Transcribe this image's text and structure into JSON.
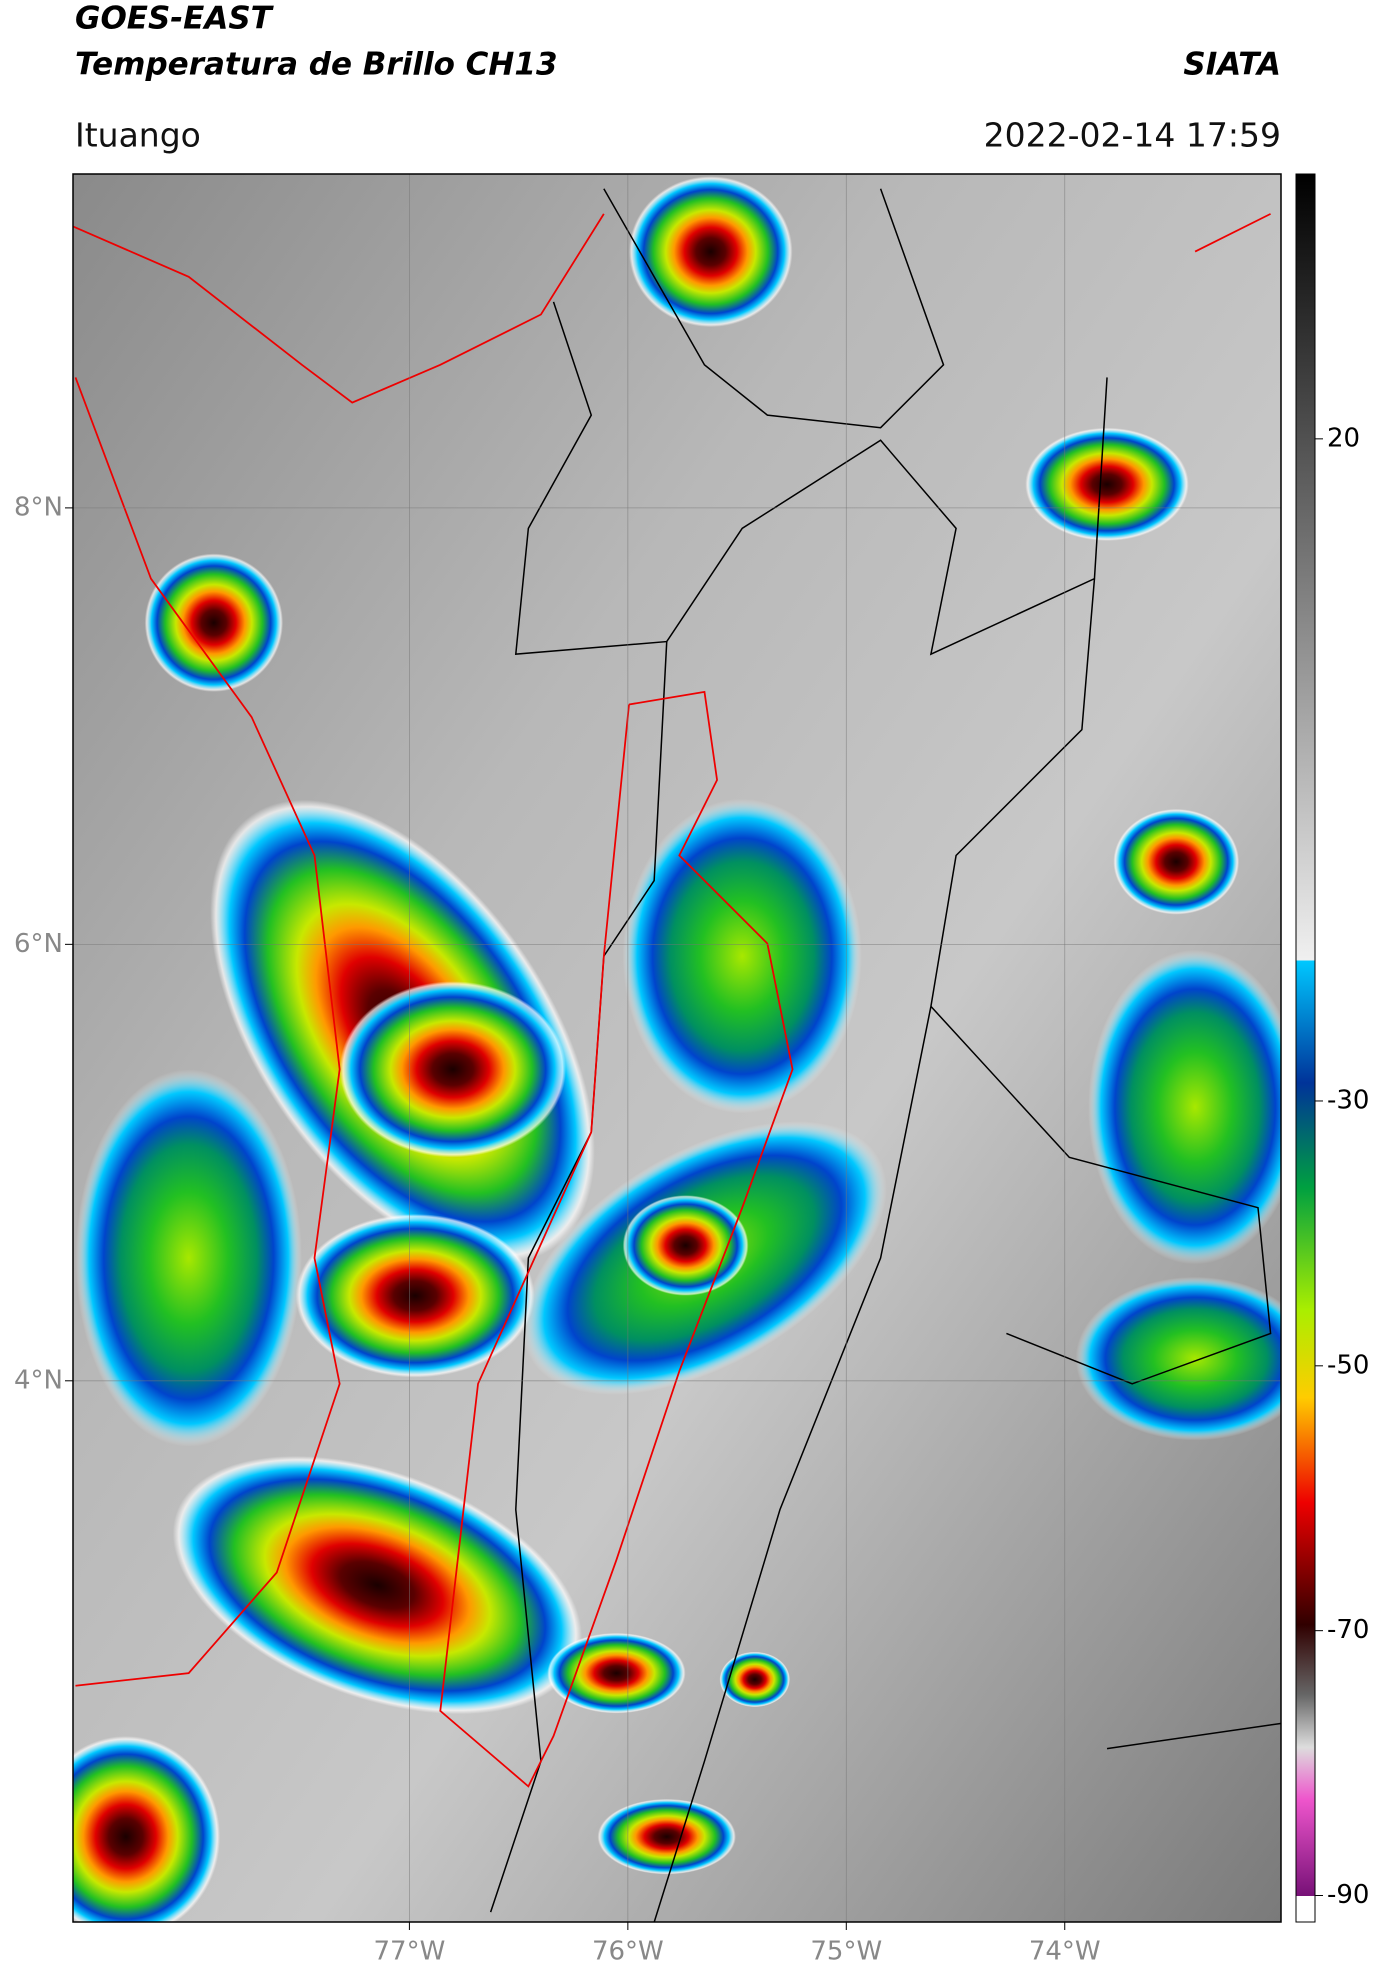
{
  "header": {
    "line1": "GOES-EAST",
    "line2": "Temperatura de Brillo CH13",
    "brand": "SIATA",
    "place": "Ituango",
    "datetime": "2022-02-14 17:59"
  },
  "map": {
    "latlim": [
      1.52,
      9.53
    ],
    "lonlim": [
      -78.54,
      -73.01
    ],
    "latticks": [
      {
        "value": 8,
        "label": "8°N"
      },
      {
        "value": 6,
        "label": "6°N"
      },
      {
        "value": 4,
        "label": "4°N"
      }
    ],
    "lonticks": [
      {
        "value": -77,
        "label": "77°W"
      },
      {
        "value": -76,
        "label": "76°W"
      },
      {
        "value": -75,
        "label": "75°W"
      },
      {
        "value": -74,
        "label": "74°W"
      }
    ],
    "grid": true
  },
  "colorbar": {
    "clim": [
      -92,
      40
    ],
    "ticks": [
      20,
      -30,
      -50,
      -70,
      -90
    ]
  }
}
